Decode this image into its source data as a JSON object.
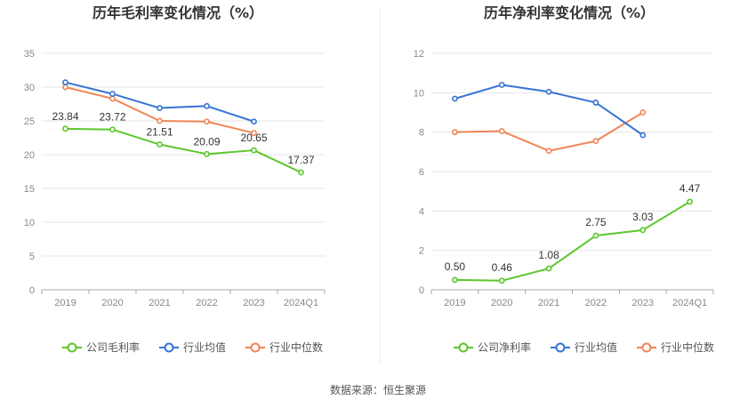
{
  "source_text": "数据来源：恒生聚源",
  "legend": [
    "公司毛利率",
    "行业均值",
    "行业中位数"
  ],
  "legend2": [
    "公司净利率",
    "行业均值",
    "行业中位数"
  ],
  "colors": {
    "company": "#5cc72a",
    "mean": "#3573d6",
    "median": "#f08556"
  },
  "chart_data": [
    {
      "type": "line",
      "title": "历年毛利率变化情况（%）",
      "categories": [
        "2019",
        "2020",
        "2021",
        "2022",
        "2023",
        "2024Q1"
      ],
      "ylim": [
        0,
        35
      ],
      "yticks": [
        0,
        5,
        10,
        15,
        20,
        25,
        30,
        35
      ],
      "grid": true,
      "legend_position": "bottom",
      "series": [
        {
          "name": "公司毛利率",
          "values": [
            23.84,
            23.72,
            21.51,
            20.09,
            20.65,
            17.37
          ],
          "labels": [
            "23.84",
            "23.72",
            "21.51",
            "20.09",
            "20.65",
            "17.37"
          ]
        },
        {
          "name": "行业均值",
          "values": [
            30.7,
            29.0,
            26.9,
            27.2,
            24.9,
            null
          ]
        },
        {
          "name": "行业中位数",
          "values": [
            30.0,
            28.3,
            25.0,
            24.9,
            23.2,
            null
          ]
        }
      ]
    },
    {
      "type": "line",
      "title": "历年净利率变化情况（%）",
      "categories": [
        "2019",
        "2020",
        "2021",
        "2022",
        "2023",
        "2024Q1"
      ],
      "ylim": [
        0,
        12
      ],
      "yticks": [
        0,
        2,
        4,
        6,
        8,
        10,
        12
      ],
      "grid": true,
      "legend_position": "bottom",
      "series": [
        {
          "name": "公司净利率",
          "values": [
            0.5,
            0.46,
            1.08,
            2.75,
            3.03,
            4.47
          ],
          "labels": [
            "0.50",
            "0.46",
            "1.08",
            "2.75",
            "3.03",
            "4.47"
          ]
        },
        {
          "name": "行业均值",
          "values": [
            9.7,
            10.4,
            10.05,
            9.5,
            7.85,
            null
          ]
        },
        {
          "name": "行业中位数",
          "values": [
            8.0,
            8.05,
            7.05,
            7.55,
            9.0,
            null
          ]
        }
      ]
    }
  ]
}
